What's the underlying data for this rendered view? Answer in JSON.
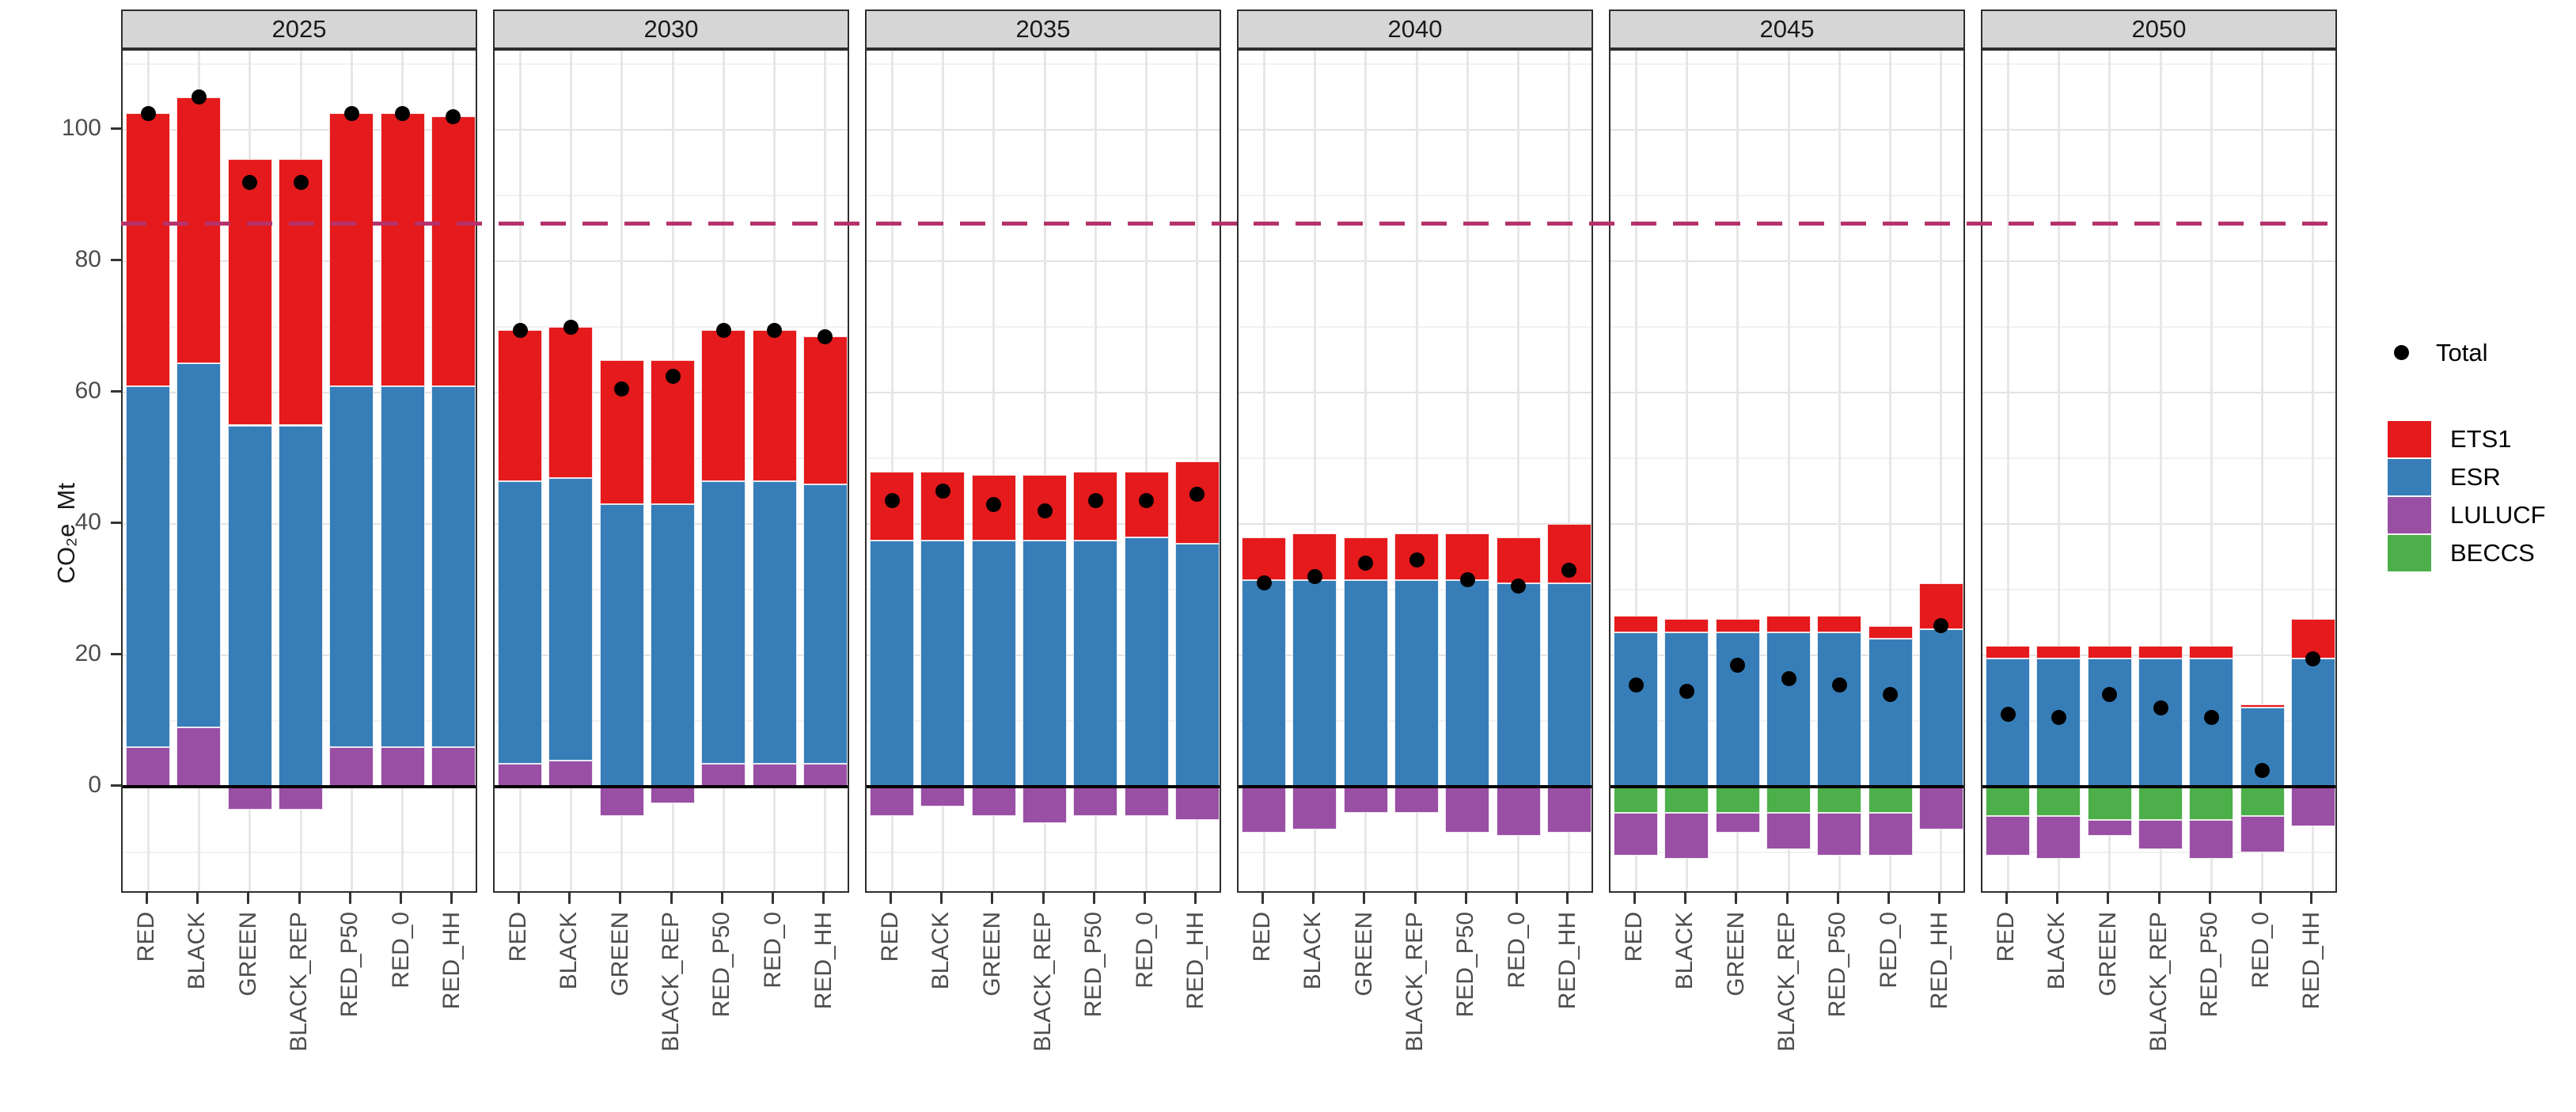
{
  "chart_data": {
    "type": "bar",
    "variant": "stacked-faceted",
    "title": "",
    "ylabel": "CO₂e  Mt",
    "xlabel": "",
    "yticks": [
      0,
      20,
      40,
      60,
      80,
      100
    ],
    "ylim": [
      -16.4,
      112
    ],
    "grid": "on",
    "legend_position": "right",
    "facets": [
      "2025",
      "2030",
      "2035",
      "2040",
      "2045",
      "2050"
    ],
    "categories": [
      "RED",
      "BLACK",
      "GREEN",
      "BLACK_REP",
      "RED_P50",
      "RED_0",
      "RED_HH"
    ],
    "series_names": [
      "ETS1",
      "ESR",
      "LULUCF",
      "BECCS"
    ],
    "stack_order_from_zero_up": [
      "LULUCF",
      "ESR",
      "ETS1"
    ],
    "stack_order_from_zero_down": [
      "BECCS",
      "LULUCF"
    ],
    "dashed_reference_line": 85.5,
    "panels": [
      {
        "year": "2025",
        "bars": [
          {
            "scenario": "RED",
            "BECCS": 0,
            "LULUCF": 6,
            "ESR": 55,
            "ETS1": 41.5,
            "total": 102.5
          },
          {
            "scenario": "BLACK",
            "BECCS": 0,
            "LULUCF": 9,
            "ESR": 55.5,
            "ETS1": 40.5,
            "total": 105
          },
          {
            "scenario": "GREEN",
            "BECCS": 0,
            "LULUCF": -3.5,
            "ESR": 55,
            "ETS1": 40.5,
            "total": 92
          },
          {
            "scenario": "BLACK_REP",
            "BECCS": 0,
            "LULUCF": -3.5,
            "ESR": 55,
            "ETS1": 40.5,
            "total": 92
          },
          {
            "scenario": "RED_P50",
            "BECCS": 0,
            "LULUCF": 6,
            "ESR": 55,
            "ETS1": 41.5,
            "total": 102.5
          },
          {
            "scenario": "RED_0",
            "BECCS": 0,
            "LULUCF": 6,
            "ESR": 55,
            "ETS1": 41.5,
            "total": 102.5
          },
          {
            "scenario": "RED_HH",
            "BECCS": 0,
            "LULUCF": 6,
            "ESR": 55,
            "ETS1": 41,
            "total": 102
          }
        ]
      },
      {
        "year": "2030",
        "bars": [
          {
            "scenario": "RED",
            "BECCS": 0,
            "LULUCF": 3.5,
            "ESR": 43,
            "ETS1": 23,
            "total": 69.5
          },
          {
            "scenario": "BLACK",
            "BECCS": 0,
            "LULUCF": 4,
            "ESR": 43,
            "ETS1": 23,
            "total": 70
          },
          {
            "scenario": "GREEN",
            "BECCS": 0,
            "LULUCF": -4.5,
            "ESR": 43,
            "ETS1": 22,
            "total": 60.5
          },
          {
            "scenario": "BLACK_REP",
            "BECCS": 0,
            "LULUCF": -2.5,
            "ESR": 43,
            "ETS1": 22,
            "total": 62.5
          },
          {
            "scenario": "RED_P50",
            "BECCS": 0,
            "LULUCF": 3.5,
            "ESR": 43,
            "ETS1": 23,
            "total": 69.5
          },
          {
            "scenario": "RED_0",
            "BECCS": 0,
            "LULUCF": 3.5,
            "ESR": 43,
            "ETS1": 23,
            "total": 69.5
          },
          {
            "scenario": "RED_HH",
            "BECCS": 0,
            "LULUCF": 3.5,
            "ESR": 42.5,
            "ETS1": 22.5,
            "total": 68.5
          }
        ]
      },
      {
        "year": "2035",
        "bars": [
          {
            "scenario": "RED",
            "BECCS": 0,
            "LULUCF": -4.5,
            "ESR": 37.5,
            "ETS1": 10.5,
            "total": 43.5
          },
          {
            "scenario": "BLACK",
            "BECCS": 0,
            "LULUCF": -3,
            "ESR": 37.5,
            "ETS1": 10.5,
            "total": 45
          },
          {
            "scenario": "GREEN",
            "BECCS": 0,
            "LULUCF": -4.5,
            "ESR": 37.5,
            "ETS1": 10,
            "total": 43
          },
          {
            "scenario": "BLACK_REP",
            "BECCS": 0,
            "LULUCF": -5.5,
            "ESR": 37.5,
            "ETS1": 10,
            "total": 42
          },
          {
            "scenario": "RED_P50",
            "BECCS": 0,
            "LULUCF": -4.5,
            "ESR": 37.5,
            "ETS1": 10.5,
            "total": 43.5
          },
          {
            "scenario": "RED_0",
            "BECCS": 0,
            "LULUCF": -4.5,
            "ESR": 38,
            "ETS1": 10,
            "total": 43.5
          },
          {
            "scenario": "RED_HH",
            "BECCS": 0,
            "LULUCF": -5,
            "ESR": 37,
            "ETS1": 12.5,
            "total": 44.5
          }
        ]
      },
      {
        "year": "2040",
        "bars": [
          {
            "scenario": "RED",
            "BECCS": 0,
            "LULUCF": -7,
            "ESR": 31.5,
            "ETS1": 6.5,
            "total": 31
          },
          {
            "scenario": "BLACK",
            "BECCS": 0,
            "LULUCF": -6.5,
            "ESR": 31.5,
            "ETS1": 7,
            "total": 32
          },
          {
            "scenario": "GREEN",
            "BECCS": 0,
            "LULUCF": -4,
            "ESR": 31.5,
            "ETS1": 6.5,
            "total": 34
          },
          {
            "scenario": "BLACK_REP",
            "BECCS": 0,
            "LULUCF": -4,
            "ESR": 31.5,
            "ETS1": 7,
            "total": 34.5
          },
          {
            "scenario": "RED_P50",
            "BECCS": 0,
            "LULUCF": -7,
            "ESR": 31.5,
            "ETS1": 7,
            "total": 31.5
          },
          {
            "scenario": "RED_0",
            "BECCS": 0,
            "LULUCF": -7.5,
            "ESR": 31,
            "ETS1": 7,
            "total": 30.5
          },
          {
            "scenario": "RED_HH",
            "BECCS": 0,
            "LULUCF": -7,
            "ESR": 31,
            "ETS1": 9,
            "total": 33
          }
        ]
      },
      {
        "year": "2045",
        "bars": [
          {
            "scenario": "RED",
            "BECCS": -4,
            "LULUCF": -6.5,
            "ESR": 23.5,
            "ETS1": 2.5,
            "total": 15.5
          },
          {
            "scenario": "BLACK",
            "BECCS": -4,
            "LULUCF": -7,
            "ESR": 23.5,
            "ETS1": 2,
            "total": 14.5
          },
          {
            "scenario": "GREEN",
            "BECCS": -4,
            "LULUCF": -3,
            "ESR": 23.5,
            "ETS1": 2,
            "total": 18.5
          },
          {
            "scenario": "BLACK_REP",
            "BECCS": -4,
            "LULUCF": -5.5,
            "ESR": 23.5,
            "ETS1": 2.5,
            "total": 16.5
          },
          {
            "scenario": "RED_P50",
            "BECCS": -4,
            "LULUCF": -6.5,
            "ESR": 23.5,
            "ETS1": 2.5,
            "total": 15.5
          },
          {
            "scenario": "RED_0",
            "BECCS": -4,
            "LULUCF": -6.5,
            "ESR": 22.5,
            "ETS1": 2,
            "total": 14
          },
          {
            "scenario": "RED_HH",
            "BECCS": 0,
            "LULUCF": -6.5,
            "ESR": 24,
            "ETS1": 7,
            "total": 24.5
          }
        ]
      },
      {
        "year": "2050",
        "bars": [
          {
            "scenario": "RED",
            "BECCS": -4.5,
            "LULUCF": -6,
            "ESR": 19.5,
            "ETS1": 2,
            "total": 11
          },
          {
            "scenario": "BLACK",
            "BECCS": -4.5,
            "LULUCF": -6.5,
            "ESR": 19.5,
            "ETS1": 2,
            "total": 10.5
          },
          {
            "scenario": "GREEN",
            "BECCS": -5,
            "LULUCF": -2.5,
            "ESR": 19.5,
            "ETS1": 2,
            "total": 14
          },
          {
            "scenario": "BLACK_REP",
            "BECCS": -5,
            "LULUCF": -4.5,
            "ESR": 19.5,
            "ETS1": 2,
            "total": 12
          },
          {
            "scenario": "RED_P50",
            "BECCS": -5,
            "LULUCF": -6,
            "ESR": 19.5,
            "ETS1": 2,
            "total": 10.5
          },
          {
            "scenario": "RED_0",
            "BECCS": -4.5,
            "LULUCF": -5.5,
            "ESR": 12,
            "ETS1": 0.5,
            "total": 2.5
          },
          {
            "scenario": "RED_HH",
            "BECCS": 0,
            "LULUCF": -6,
            "ESR": 19.5,
            "ETS1": 6,
            "total": 19.5
          }
        ]
      }
    ],
    "legend": {
      "total_label": "Total",
      "entries": [
        {
          "label": "ETS1",
          "key": "ETS1"
        },
        {
          "label": "ESR",
          "key": "ESR"
        },
        {
          "label": "LULUCF",
          "key": "LULUCF"
        },
        {
          "label": "BECCS",
          "key": "BECCS"
        }
      ]
    }
  },
  "colors": {
    "ETS1": "#E41A1C",
    "ESR": "#377EB8",
    "LULUCF": "#994FA4",
    "BECCS": "#4DAF4A",
    "total_dot": "#000000",
    "dashed_line": "#B5326B",
    "grid_major": "#E3E3E3",
    "grid_minor": "#F1F1F1",
    "grid_vertical": "#E7E7E7",
    "panel_border": "#2E2E2E",
    "header_bg": "#D6D6D6",
    "axis_text": "#4D4D4D",
    "zero_line": "#000000"
  }
}
